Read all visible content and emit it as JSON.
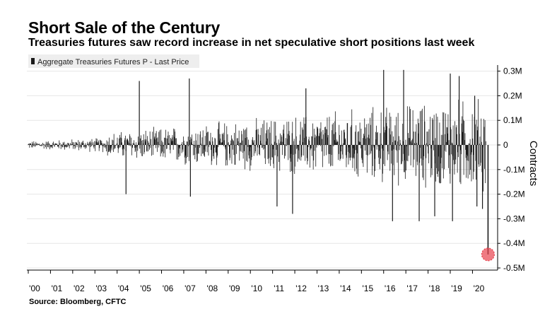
{
  "title": "Short Sale of the Century",
  "subtitle": "Treasuries futures saw record increase in net speculative short positions last week",
  "source": "Source: Bloomberg, CFTC",
  "chart_data": {
    "type": "bar",
    "legend": "Aggregate Treasuries Futures P - Last Price",
    "legend_position": "top-left",
    "ylabel": "Contracts",
    "ylim": [
      -0.5,
      0.3
    ],
    "y_unit": "millions of contracts",
    "y_ticks": [
      {
        "value": 0.3,
        "label": "0.3M"
      },
      {
        "value": 0.2,
        "label": "0.2M"
      },
      {
        "value": 0.1,
        "label": "0.1M"
      },
      {
        "value": 0,
        "label": "0"
      },
      {
        "value": -0.1,
        "label": "-0.1M"
      },
      {
        "value": -0.2,
        "label": "-0.2M"
      },
      {
        "value": -0.3,
        "label": "-0.3M"
      },
      {
        "value": -0.4,
        "label": "-0.4M"
      },
      {
        "value": -0.5,
        "label": "-0.5M"
      }
    ],
    "x_range": [
      2000.0,
      2020.75
    ],
    "x_ticks": [
      {
        "value": 2000,
        "label": "'00"
      },
      {
        "value": 2001,
        "label": "'01"
      },
      {
        "value": 2002,
        "label": "'02"
      },
      {
        "value": 2003,
        "label": "'03"
      },
      {
        "value": 2004,
        "label": "'04"
      },
      {
        "value": 2005,
        "label": "'05"
      },
      {
        "value": 2006,
        "label": "'06"
      },
      {
        "value": 2007,
        "label": "'07"
      },
      {
        "value": 2008,
        "label": "'08"
      },
      {
        "value": 2009,
        "label": "'09"
      },
      {
        "value": 2010,
        "label": "'10"
      },
      {
        "value": 2011,
        "label": "'11"
      },
      {
        "value": 2012,
        "label": "'12"
      },
      {
        "value": 2013,
        "label": "'13"
      },
      {
        "value": 2014,
        "label": "'14"
      },
      {
        "value": 2015,
        "label": "'15"
      },
      {
        "value": 2016,
        "label": "'16"
      },
      {
        "value": 2017,
        "label": "'17"
      },
      {
        "value": 2018,
        "label": "'18"
      },
      {
        "value": 2019,
        "label": "'19"
      },
      {
        "value": 2020,
        "label": "'20"
      }
    ],
    "spikes": [
      {
        "x": 2005.0,
        "value": 0.26
      },
      {
        "x": 2007.25,
        "value": 0.27
      },
      {
        "x": 2012.5,
        "value": 0.23
      },
      {
        "x": 2016.0,
        "value": 0.305
      },
      {
        "x": 2016.9,
        "value": 0.305
      },
      {
        "x": 2019.0,
        "value": 0.29
      },
      {
        "x": 2019.4,
        "value": 0.28
      },
      {
        "x": 2020.1,
        "value": 0.2
      },
      {
        "x": 2004.4,
        "value": -0.2
      },
      {
        "x": 2007.3,
        "value": -0.21
      },
      {
        "x": 2011.2,
        "value": -0.25
      },
      {
        "x": 2011.9,
        "value": -0.28
      },
      {
        "x": 2016.4,
        "value": -0.31
      },
      {
        "x": 2017.6,
        "value": -0.31
      },
      {
        "x": 2018.3,
        "value": -0.29
      },
      {
        "x": 2019.1,
        "value": -0.31
      },
      {
        "x": 2020.2,
        "value": -0.25
      },
      {
        "x": 2020.45,
        "value": -0.26
      }
    ],
    "latest": {
      "x": 2020.7,
      "value": -0.445,
      "note": "record increase in net short positions"
    },
    "bar_color": "#1a1a1a",
    "highlight_color": "#e8434f"
  }
}
